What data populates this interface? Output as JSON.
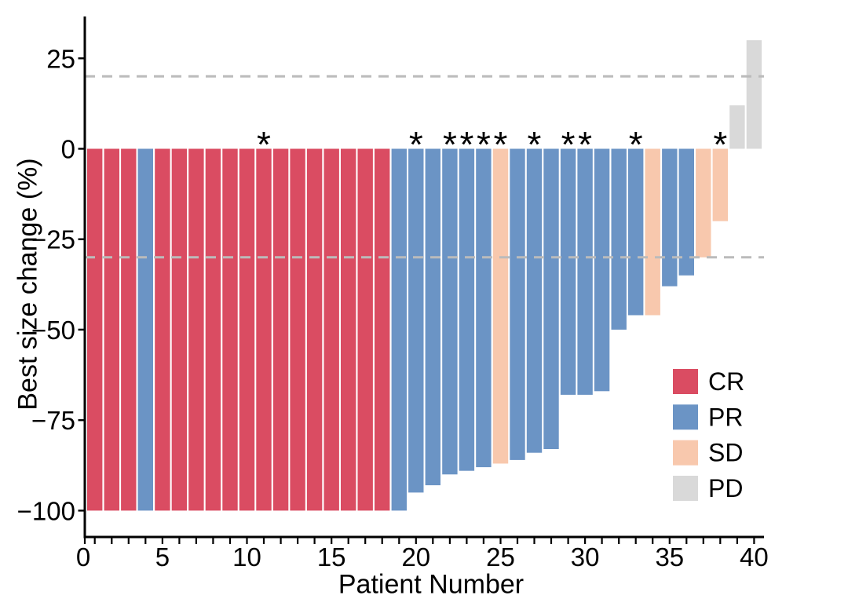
{
  "chart_data": {
    "type": "bar",
    "title": "",
    "xlabel": "Patient Number",
    "ylabel": "Best size change (%)",
    "x": [
      1,
      2,
      3,
      4,
      5,
      6,
      7,
      8,
      9,
      10,
      11,
      12,
      13,
      14,
      15,
      16,
      17,
      18,
      19,
      20,
      21,
      22,
      23,
      24,
      25,
      26,
      27,
      28,
      29,
      30,
      31,
      32,
      33,
      34,
      35,
      36,
      37,
      38,
      39,
      40
    ],
    "values": [
      -100,
      -100,
      -100,
      -100,
      -100,
      -100,
      -100,
      -100,
      -100,
      -100,
      -100,
      -100,
      -100,
      -100,
      -100,
      -100,
      -100,
      -100,
      -100,
      -95,
      -93,
      -90,
      -89,
      -88,
      -87,
      -86,
      -84,
      -83,
      -68,
      -68,
      -67,
      -50,
      -46,
      -46,
      -38,
      -35,
      -30,
      -20,
      12,
      30
    ],
    "responses": [
      "CR",
      "CR",
      "CR",
      "PR",
      "CR",
      "CR",
      "CR",
      "CR",
      "CR",
      "CR",
      "CR",
      "CR",
      "CR",
      "CR",
      "CR",
      "CR",
      "CR",
      "CR",
      "PR",
      "PR",
      "PR",
      "PR",
      "PR",
      "PR",
      "SD",
      "PR",
      "PR",
      "PR",
      "PR",
      "PR",
      "PR",
      "PR",
      "PR",
      "SD",
      "PR",
      "PR",
      "SD",
      "SD",
      "PD",
      "PD"
    ],
    "starred_patients": [
      11,
      20,
      22,
      23,
      24,
      25,
      27,
      29,
      30,
      33,
      38
    ],
    "star_symbol": "*",
    "reference_lines": [
      20,
      -30
    ],
    "reference_line_color": "#bbbbbb",
    "reference_line_style": "dashed",
    "colors": {
      "CR": "#da4c62",
      "PR": "#6b94c5",
      "SD": "#f8c8ad",
      "PD": "#d9d9d9"
    },
    "xlim": [
      0,
      41
    ],
    "ylim": [
      -107,
      36
    ],
    "x_major_ticks": [
      0,
      5,
      10,
      15,
      20,
      25,
      30,
      35,
      40
    ],
    "x_minor_tick_step": 1,
    "y_ticks": [
      25,
      0,
      -25,
      -50,
      -75,
      -100
    ],
    "grid": "off",
    "legend_position": "inside-right",
    "axis_color": "#000000"
  },
  "legend": {
    "items": [
      {
        "label": "CR",
        "color": "#da4c62"
      },
      {
        "label": "PR",
        "color": "#6b94c5"
      },
      {
        "label": "SD",
        "color": "#f8c8ad"
      },
      {
        "label": "PD",
        "color": "#d9d9d9"
      }
    ]
  }
}
